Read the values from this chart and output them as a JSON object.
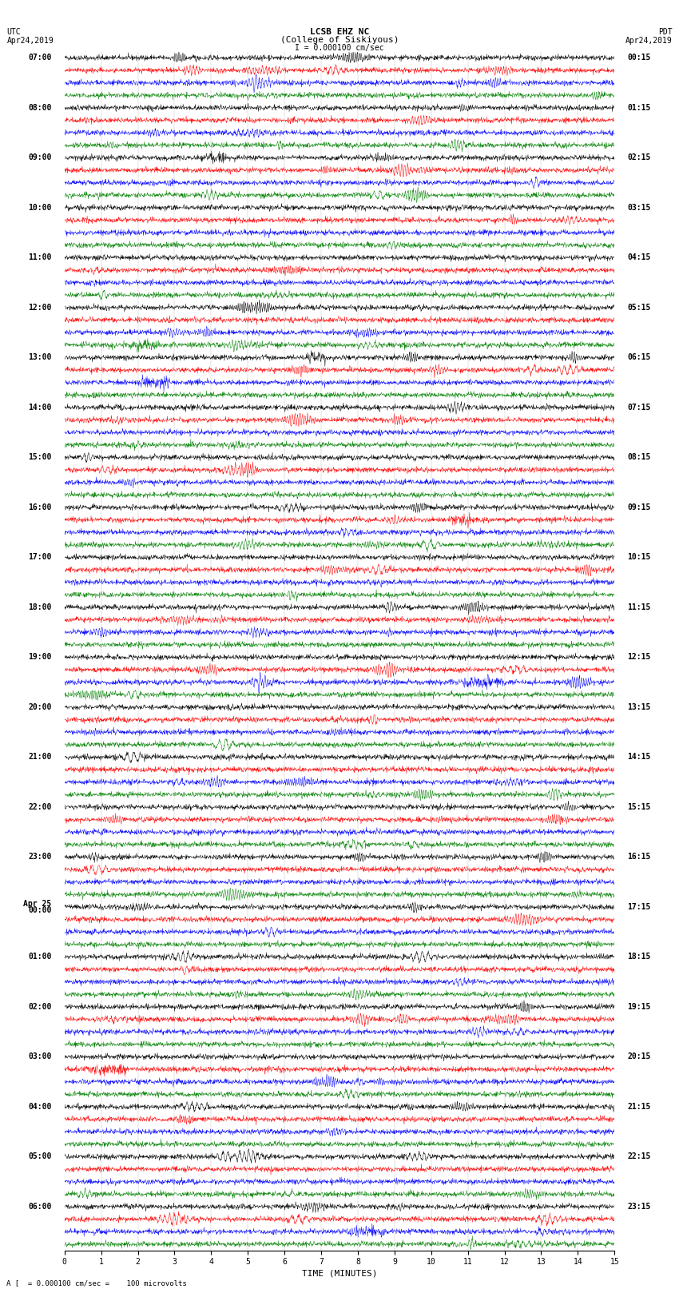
{
  "title_line1": "LCSB EHZ NC",
  "title_line2": "(College of Siskiyous)",
  "scale_label": "I = 0.000100 cm/sec",
  "utc_label": "UTC",
  "pdt_label": "PDT",
  "date_left": "Apr24,2019",
  "date_right": "Apr24,2019",
  "footer_label": "A [  = 0.000100 cm/sec =    100 microvolts",
  "xlabel": "TIME (MINUTES)",
  "left_times": [
    "07:00",
    "08:00",
    "09:00",
    "10:00",
    "11:00",
    "12:00",
    "13:00",
    "14:00",
    "15:00",
    "16:00",
    "17:00",
    "18:00",
    "19:00",
    "20:00",
    "21:00",
    "22:00",
    "23:00",
    "Apr 25\n00:00",
    "01:00",
    "02:00",
    "03:00",
    "04:00",
    "05:00",
    "06:00"
  ],
  "right_times": [
    "00:15",
    "01:15",
    "02:15",
    "03:15",
    "04:15",
    "05:15",
    "06:15",
    "07:15",
    "08:15",
    "09:15",
    "10:15",
    "11:15",
    "12:15",
    "13:15",
    "14:15",
    "15:15",
    "16:15",
    "17:15",
    "18:15",
    "19:15",
    "20:15",
    "21:15",
    "22:15",
    "23:15"
  ],
  "colors": [
    "black",
    "red",
    "blue",
    "green"
  ],
  "n_rows": 96,
  "xlim": [
    0,
    15
  ],
  "bg_color": "white",
  "title_fontsize": 8,
  "label_fontsize": 7,
  "tick_fontsize": 7,
  "row_label_fontsize": 7,
  "seed": 42
}
